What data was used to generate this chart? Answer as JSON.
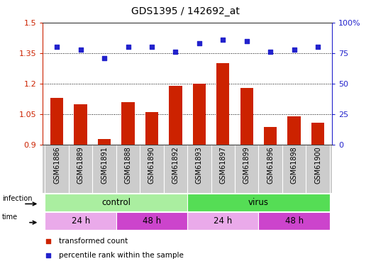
{
  "title": "GDS1395 / 142692_at",
  "samples": [
    "GSM61886",
    "GSM61889",
    "GSM61891",
    "GSM61888",
    "GSM61890",
    "GSM61892",
    "GSM61893",
    "GSM61897",
    "GSM61899",
    "GSM61896",
    "GSM61898",
    "GSM61900"
  ],
  "transformed_counts": [
    1.13,
    1.1,
    0.93,
    1.11,
    1.06,
    1.19,
    1.2,
    1.3,
    1.18,
    0.99,
    1.04,
    1.01
  ],
  "percentile_ranks": [
    80,
    78,
    71,
    80,
    80,
    76,
    83,
    86,
    85,
    76,
    78,
    80
  ],
  "bar_color": "#CC2200",
  "dot_color": "#2222CC",
  "ylim_left": [
    0.9,
    1.5
  ],
  "ylim_right": [
    0,
    100
  ],
  "yticks_left": [
    0.9,
    1.05,
    1.2,
    1.35,
    1.5
  ],
  "ytick_labels_left": [
    "0.9",
    "1.05",
    "1.2",
    "1.35",
    "1.5"
  ],
  "yticks_right": [
    0,
    25,
    50,
    75,
    100
  ],
  "ytick_labels_right": [
    "0",
    "25",
    "50",
    "75",
    "100%"
  ],
  "infection_groups": [
    {
      "label": "control",
      "start": 0,
      "end": 6,
      "color": "#AAEEA0"
    },
    {
      "label": "virus",
      "start": 6,
      "end": 12,
      "color": "#55DD55"
    }
  ],
  "time_groups": [
    {
      "label": "24 h",
      "start": 0,
      "end": 3,
      "color": "#EAAAEA"
    },
    {
      "label": "48 h",
      "start": 3,
      "end": 6,
      "color": "#CC44CC"
    },
    {
      "label": "24 h",
      "start": 6,
      "end": 9,
      "color": "#EAAAEA"
    },
    {
      "label": "48 h",
      "start": 9,
      "end": 12,
      "color": "#CC44CC"
    }
  ],
  "infection_label": "infection",
  "time_label": "time",
  "legend_red_label": "transformed count",
  "legend_blue_label": "percentile rank within the sample",
  "axis_color_left": "#CC2200",
  "axis_color_right": "#2222CC",
  "sample_bg_color": "#CCCCCC",
  "spine_color": "#444444"
}
